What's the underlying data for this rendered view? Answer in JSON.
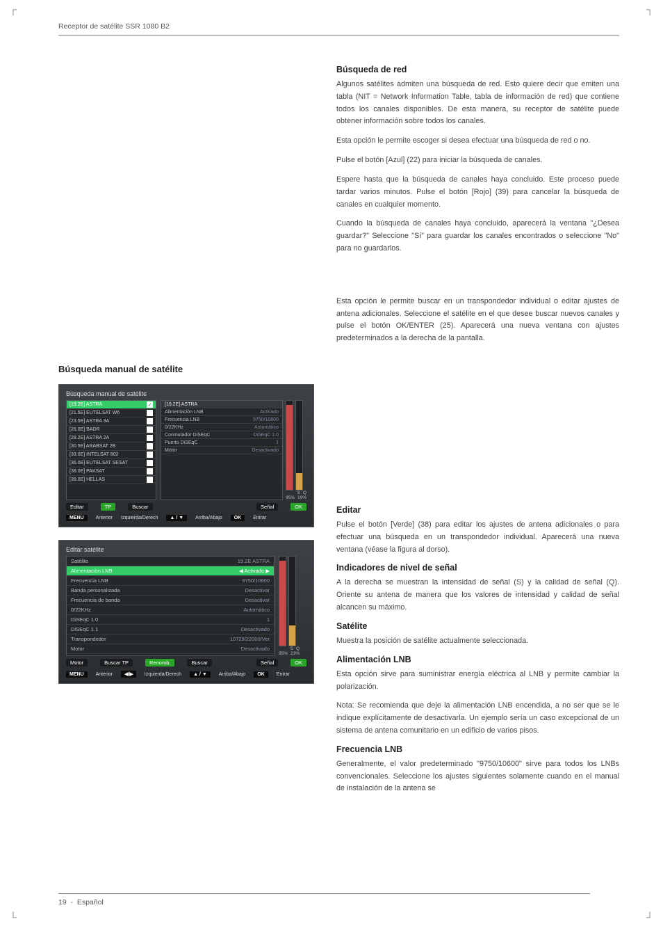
{
  "header": {
    "title": "Receptor de satélite SSR 1080 B2"
  },
  "footer": {
    "page": "19",
    "lang": "Español"
  },
  "right": {
    "s1_title": "Búsqueda de red",
    "s1_p1": "Algunos satélites admiten una búsqueda de red. Esto quiere decir que emiten una tabla (NIT = Network Information Table, tabla de información de red) que contiene todos los canales disponibles. De esta manera, su receptor de satélite puede obtener información sobre todos los canales.",
    "s1_p2": "Esta opción le permite escoger si desea efectuar una búsqueda de red o no.",
    "s1_p3": "Pulse el botón [Azul] (22) para iniciar la búsqueda de canales.",
    "s1_p4": "Espere hasta que la búsqueda de canales haya concluido. Este proceso puede tardar varios minutos. Pulse el botón [Rojo] (39) para cancelar la búsqueda de canales en cualquier momento.",
    "s1_p5": "Cuando la búsqueda de canales haya concluido, aparecerá la ventana \"¿Desea guardar?\" Seleccione \"Sí\" para guardar los canales encontrados o seleccione \"No\" para no guardarlos.",
    "s2_p1": "Esta opción le permite buscar en un transpondedor individual o editar ajustes de antena adicionales. Seleccione el satélite en el que desee buscar nuevos canales y pulse el botón OK/ENTER (25). Aparecerá una nueva ventana con ajustes predeterminados a la derecha de la pantalla.",
    "s3_title": "Editar",
    "s3_p1": "Pulse el botón [Verde] (38) para editar los ajustes de antena adicionales o para efectuar una búsqueda en un transpondedor individual. Aparecerá una nueva ventana (véase la figura al dorso).",
    "s4_title": "Indicadores de nivel de señal",
    "s4_p1": "A la derecha se muestran la intensidad de señal (S) y la calidad de señal (Q). Oriente su antena de manera que los valores de intensidad y calidad de señal alcancen su máximo.",
    "s5_title": "Satélite",
    "s5_p1": "Muestra la posición de satélite actualmente seleccionada.",
    "s6_title": "Alimentación LNB",
    "s6_p1": "Esta opción sirve para suministrar energía eléctrica al LNB y permite cambiar la polarización.",
    "s6_p2": "Nota: Se recomienda que deje la alimentación LNB encendida, a no ser que se le indique explícitamente de desactivarla. Un ejemplo sería un caso excepcional de un sistema de antena comunitario en un edificio de varios pisos.",
    "s7_title": "Frecuencia LNB",
    "s7_p1": "Generalmente, el valor predeterminado \"9750/10600\" sirve para todos los LNBs convencionales. Seleccione los ajustes siguientes solamente cuando en el manual de instalación de la antena se"
  },
  "left": {
    "section_title": "Búsqueda manual de satélite"
  },
  "osd1": {
    "title": "Búsqueda manual de satélite",
    "sats": [
      "[19.2E] ASTRA",
      "[21.5E] EUTELSAT W6",
      "[23.5E] ASTRA 3A",
      "[26.0E] BADR",
      "[28.2E] ASTRA 2A",
      "[30.5E] ARABSAT 2B",
      "[33.0E] INTELSAT 802",
      "[36.0E] EUTELSAT SESAT",
      "[38.0E] PAKSAT",
      "[39.0E] HELLAS"
    ],
    "props_header": "[19.2E] ASTRA",
    "props": [
      {
        "k": "Alimentación LNB",
        "v": "Activado"
      },
      {
        "k": "Frecuencia LNB",
        "v": "9750/10600"
      },
      {
        "k": "0/22KHz",
        "v": "Automático"
      },
      {
        "k": "Conmutador DiSEqC",
        "v": "DiSEqC 1.0"
      },
      {
        "k": "Puerto DiSEqC",
        "v": "1"
      },
      {
        "k": "Motor",
        "v": "Desactivado"
      }
    ],
    "signal": {
      "s_label": "S",
      "q_label": "Q",
      "s_pct": "95%",
      "q_pct": "19%",
      "s_fill": 0.95,
      "q_fill": 0.19,
      "s_color": "#c84a4a",
      "q_color": "#d6a24a"
    },
    "btns": {
      "editar": "Editar",
      "tp": "TP",
      "buscar": "Buscar",
      "senal": "Señal",
      "ok": "OK"
    },
    "help": {
      "menu": "MENU",
      "anterior": "Anterior",
      "lr": "Izquierda/Derech",
      "ud": "Arriba/Abajo",
      "ok": "OK",
      "entrar": "Entrar",
      "arrows": "▲ / ▼",
      "lr_sym": "◀ / ▶"
    }
  },
  "osd2": {
    "title": "Editar satélite",
    "rows": [
      {
        "k": "Satélite",
        "v": "19.2E ASTRA"
      },
      {
        "k": "Alimentación LNB",
        "v": "Activado",
        "sel": true,
        "arrow": true
      },
      {
        "k": "Frecuencia LNB",
        "v": "9750/10600"
      },
      {
        "k": "Banda personalizada",
        "v": "Desactivar"
      },
      {
        "k": "Frecuencia de banda",
        "v": "Desactivar"
      },
      {
        "k": "0/22KHz",
        "v": "Automático"
      },
      {
        "k": "DiSEqC 1.0",
        "v": "1"
      },
      {
        "k": "DiSEqC 1.1",
        "v": "Desactivado"
      },
      {
        "k": "Transpondedor",
        "v": "10729/22000/Ver"
      },
      {
        "k": "Motor",
        "v": "Desactivado"
      }
    ],
    "signal": {
      "s_label": "S",
      "q_label": "Q",
      "s_pct": "95%",
      "q_pct": "23%",
      "s_fill": 0.95,
      "q_fill": 0.23,
      "s_color": "#c84a4a",
      "q_color": "#d6a24a"
    },
    "btns": {
      "motor": "Motor",
      "buscartp": "Buscar TP",
      "renomb": "Renomb.",
      "buscar": "Buscar",
      "senal": "Señal",
      "ok": "OK"
    },
    "help": {
      "menu": "MENU",
      "anterior": "Anterior",
      "lr": "Izquierda/Derech",
      "ud": "Arriba/Abajo",
      "ok": "OK",
      "entrar": "Entrar",
      "arrows": "▲ / ▼",
      "lr_sym": "◀ / ▶"
    }
  }
}
